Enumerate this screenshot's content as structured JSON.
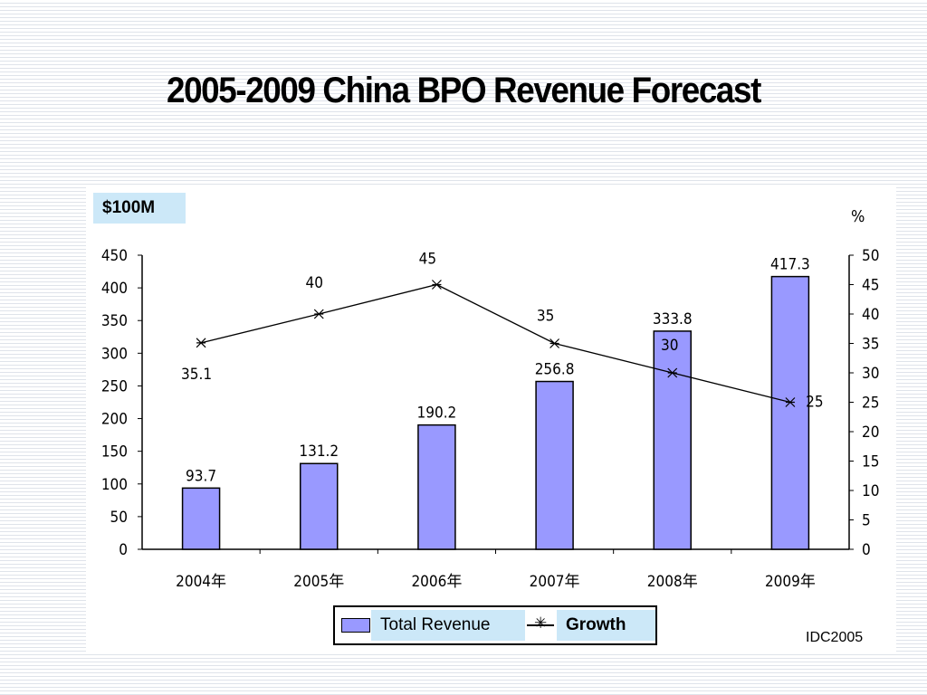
{
  "slide": {
    "title": "2005-2009 China BPO Revenue Forecast",
    "source": "IDC2005"
  },
  "chart_data": {
    "type": "bar",
    "categories": [
      "2004年",
      "2005年",
      "2006年",
      "2007年",
      "2008年",
      "2009年"
    ],
    "series": [
      {
        "name": "Total Revenue",
        "type": "bar",
        "axis": "left",
        "values": [
          93.7,
          131.2,
          190.2,
          256.8,
          333.8,
          417.3
        ],
        "color": "#9999ff"
      },
      {
        "name": "Growth",
        "type": "line",
        "axis": "right",
        "marker": "asterisk",
        "values": [
          35.1,
          40,
          45,
          35,
          30,
          25
        ],
        "color": "#000000"
      }
    ],
    "ylabel": "$100M",
    "y2label": "%",
    "ylim": [
      0,
      450
    ],
    "y2lim": [
      0,
      50
    ],
    "yticks": [
      "0",
      "50",
      "100",
      "150",
      "200",
      "250",
      "300",
      "350",
      "400",
      "450"
    ],
    "y2ticks": [
      "0",
      "5",
      "10",
      "15",
      "20",
      "25",
      "30",
      "35",
      "40",
      "45",
      "50"
    ],
    "bar_labels": [
      "93.7",
      "131.2",
      "190.2",
      "256.8",
      "333.8",
      "417.3"
    ],
    "line_labels": [
      "35.1",
      "40",
      "45",
      "35",
      "30",
      "25"
    ],
    "legend": "bottom",
    "grid": false
  },
  "colors": {
    "bar_fill": "#9999ff",
    "label_box": "#cce8f8"
  }
}
